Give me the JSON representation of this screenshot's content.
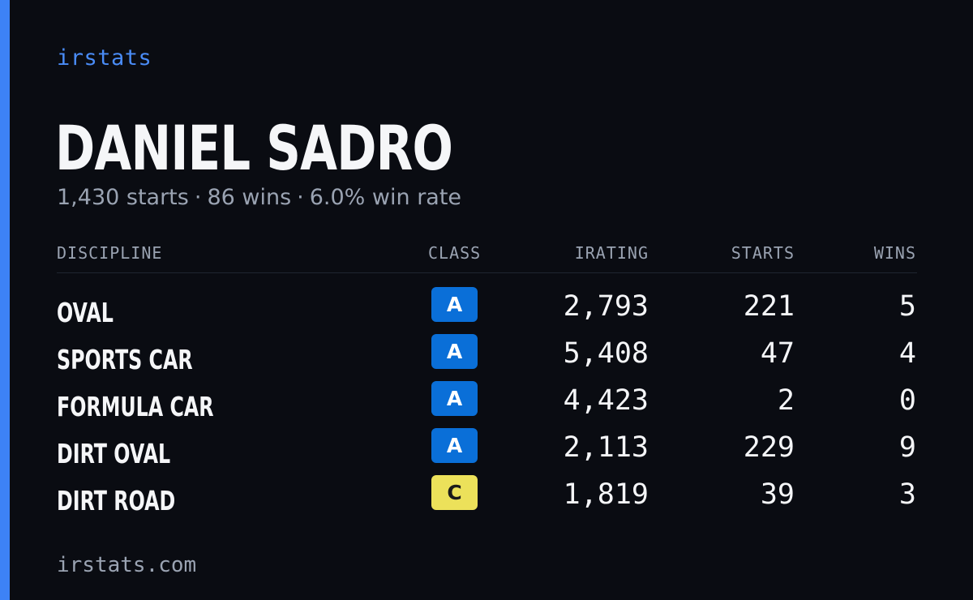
{
  "brand": "irstats",
  "driver": {
    "name": "DANIEL SADRO",
    "starts": "1,430 starts",
    "wins": "86 wins",
    "win_rate": "6.0% win rate",
    "separator": "·"
  },
  "table": {
    "headers": {
      "discipline": "DISCIPLINE",
      "class": "CLASS",
      "irating": "IRATING",
      "starts": "STARTS",
      "wins": "WINS"
    },
    "rows": [
      {
        "discipline": "OVAL",
        "class": "A",
        "irating": "2,793",
        "starts": "221",
        "wins": "5"
      },
      {
        "discipline": "SPORTS CAR",
        "class": "A",
        "irating": "5,408",
        "starts": "47",
        "wins": "4"
      },
      {
        "discipline": "FORMULA CAR",
        "class": "A",
        "irating": "4,423",
        "starts": "2",
        "wins": "0"
      },
      {
        "discipline": "DIRT OVAL",
        "class": "A",
        "irating": "2,113",
        "starts": "229",
        "wins": "9"
      },
      {
        "discipline": "DIRT ROAD",
        "class": "C",
        "irating": "1,819",
        "starts": "39",
        "wins": "3"
      }
    ]
  },
  "class_colors": {
    "A": {
      "bg": "#0a6fd8",
      "fg": "#ffffff"
    },
    "C": {
      "bg": "#ece15a",
      "fg": "#1a1a1a"
    }
  },
  "footer": "irstats.com"
}
